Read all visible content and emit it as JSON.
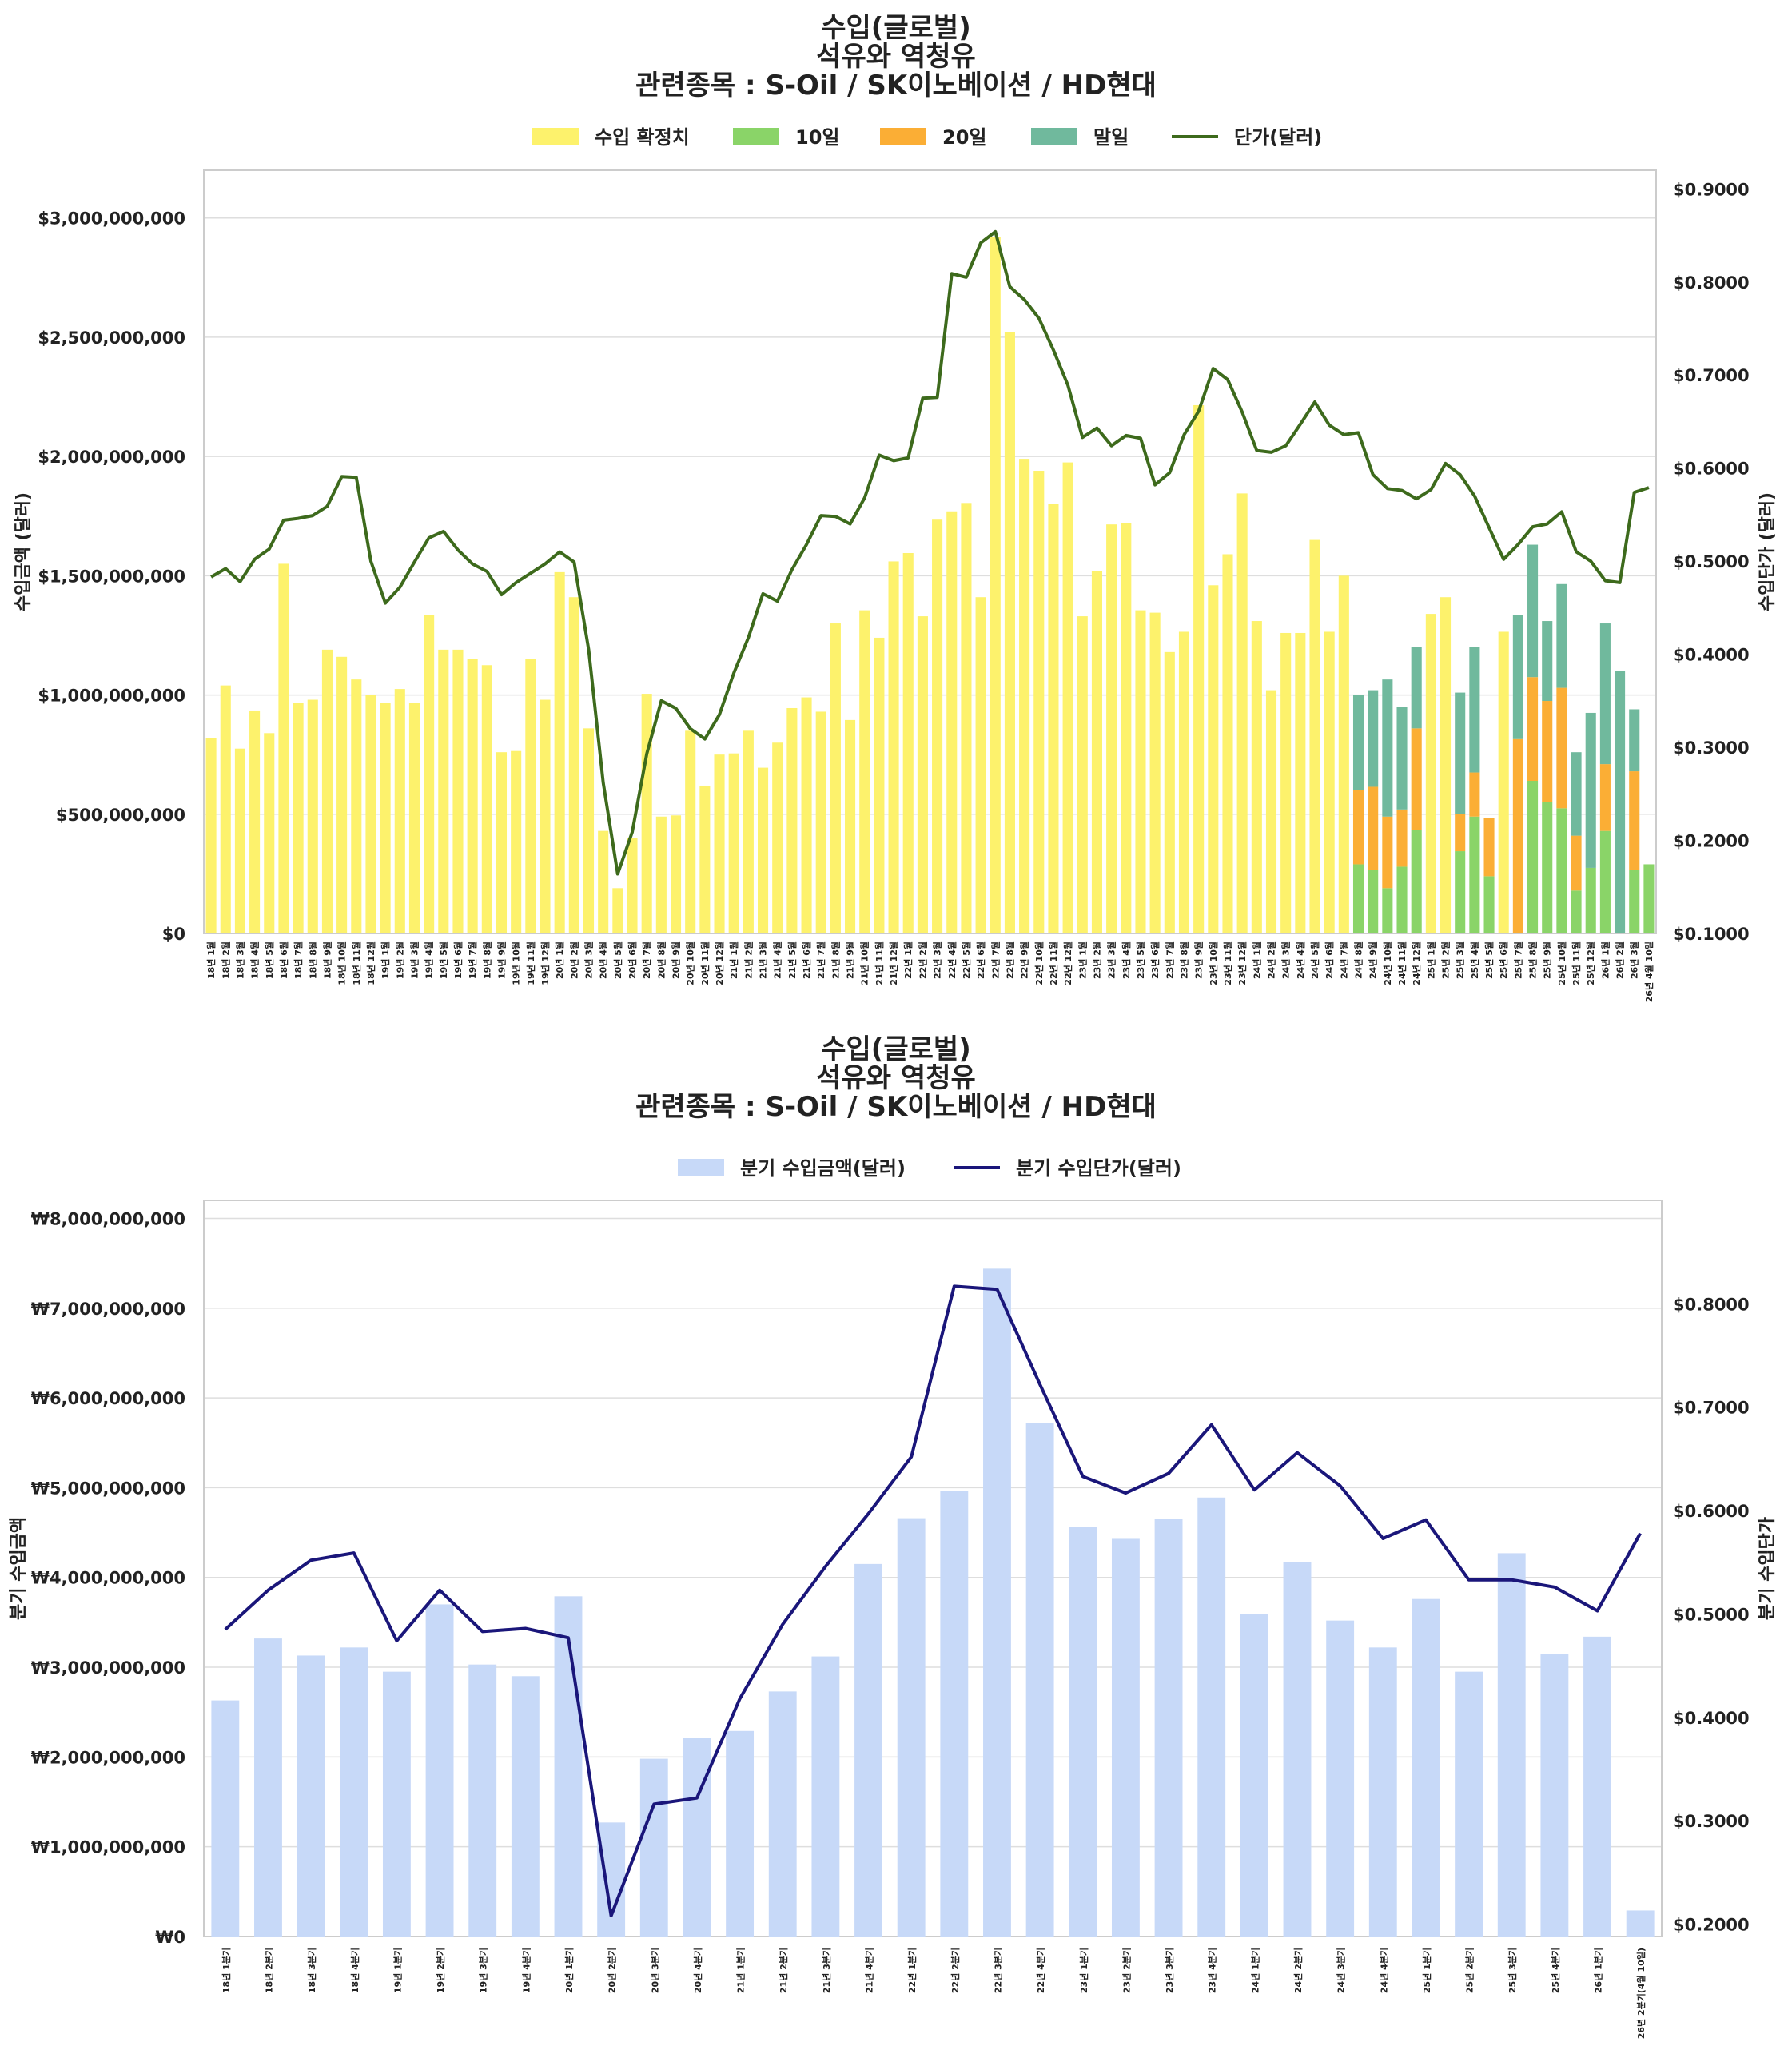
{
  "colors": {
    "confirmed": "#fdf26c",
    "d10": "#8ad468",
    "d20": "#fbae35",
    "end": "#70b99d",
    "price1": "#3d6a1c",
    "q_bar": "#c7d9f8",
    "q_line": "#1a167a",
    "grid": "#dedede",
    "frame": "#cccccc"
  },
  "chart_data": [
    {
      "type": "bar",
      "title": [
        "수입(글로벌)",
        "석유와 역청유",
        "관련종목 : S-Oil / SK이노베이션 / HD현대"
      ],
      "legend": [
        "수입 확정치",
        "10일",
        "20일",
        "말일",
        "단가(달러)"
      ],
      "ylabel": "수입금액 (달러)",
      "y2label": "수입단가 (달러)",
      "ylim": [
        0,
        3200000000
      ],
      "y2lim": [
        0.1,
        0.92
      ],
      "yticks": [
        0,
        500000000,
        1000000000,
        1500000000,
        2000000000,
        2500000000,
        3000000000
      ],
      "ytick_labels": [
        "$0",
        "$500,000,000",
        "$1,000,000,000",
        "$1,500,000,000",
        "$2,000,000,000",
        "$2,500,000,000",
        "$3,000,000,000"
      ],
      "y2ticks": [
        0.1,
        0.2,
        0.3,
        0.4,
        0.5,
        0.6,
        0.7,
        0.8,
        0.9
      ],
      "y2tick_labels": [
        "$0.1000",
        "$0.2000",
        "$0.3000",
        "$0.4000",
        "$0.5000",
        "$0.6000",
        "$0.7000",
        "$0.8000",
        "$0.9000"
      ],
      "categories": [
        "18년 1월",
        "18년 2월",
        "18년 3월",
        "18년 4월",
        "18년 5월",
        "18년 6월",
        "18년 7월",
        "18년 8월",
        "18년 9월",
        "18년 10월",
        "18년 11월",
        "18년 12월",
        "19년 1월",
        "19년 2월",
        "19년 3월",
        "19년 4월",
        "19년 5월",
        "19년 6월",
        "19년 7월",
        "19년 8월",
        "19년 9월",
        "19년 10월",
        "19년 11월",
        "19년 12월",
        "20년 1월",
        "20년 2월",
        "20년 3월",
        "20년 4월",
        "20년 5월",
        "20년 6월",
        "20년 7월",
        "20년 8월",
        "20년 9월",
        "20년 10월",
        "20년 11월",
        "20년 12월",
        "21년 1월",
        "21년 2월",
        "21년 3월",
        "21년 4월",
        "21년 5월",
        "21년 6월",
        "21년 7월",
        "21년 8월",
        "21년 9월",
        "21년 10월",
        "21년 11월",
        "21년 12월",
        "22년 1월",
        "22년 2월",
        "22년 3월",
        "22년 4월",
        "22년 5월",
        "22년 6월",
        "22년 7월",
        "22년 8월",
        "22년 9월",
        "22년 10월",
        "22년 11월",
        "22년 12월",
        "23년 1월",
        "23년 2월",
        "23년 3월",
        "23년 4월",
        "23년 5월",
        "23년 6월",
        "23년 7월",
        "23년 8월",
        "23년 9월",
        "23년 10월",
        "23년 11월",
        "23년 12월",
        "24년 1월",
        "24년 2월",
        "24년 3월",
        "24년 4월",
        "24년 5월",
        "24년 6월",
        "24년 7월",
        "24년 8월",
        "24년 9월",
        "24년 10월",
        "24년 11월",
        "24년 12월",
        "25년 1월",
        "25년 2월",
        "25년 3월",
        "25년 4월",
        "25년 5월",
        "25년 6월",
        "25년 7월",
        "25년 8월",
        "25년 9월",
        "25년 10월",
        "25년 11월",
        "25년 12월",
        "26년 1월",
        "26년 2월",
        "26년 3월",
        "26년 4월 10일"
      ],
      "series": [
        {
          "name": "수입 확정치",
          "values": [
            820000000,
            1040000000,
            775000000,
            935000000,
            840000000,
            1550000000,
            965000000,
            980000000,
            1190000000,
            1160000000,
            1065000000,
            1000000000,
            965000000,
            1025000000,
            965000000,
            1335000000,
            1190000000,
            1190000000,
            1150000000,
            1125000000,
            760000000,
            765000000,
            1150000000,
            980000000,
            1515000000,
            1410000000,
            860000000,
            430000000,
            190000000,
            400000000,
            1005000000,
            490000000,
            495000000,
            850000000,
            620000000,
            750000000,
            755000000,
            850000000,
            695000000,
            800000000,
            945000000,
            990000000,
            930000000,
            1300000000,
            895000000,
            1355000000,
            1240000000,
            1560000000,
            1595000000,
            1330000000,
            1735000000,
            1770000000,
            1805000000,
            1410000000,
            2920000000,
            2520000000,
            1990000000,
            1940000000,
            1800000000,
            1975000000,
            1330000000,
            1520000000,
            1715000000,
            1720000000,
            1355000000,
            1345000000,
            1180000000,
            1265000000,
            2215000000,
            1460000000,
            1590000000,
            1845000000,
            1310000000,
            1020000000,
            1260000000,
            1260000000,
            1650000000,
            1265000000,
            1500000000,
            0,
            0,
            0,
            0,
            0,
            1340000000,
            1410000000,
            0,
            0,
            0,
            1265000000,
            0,
            0,
            0,
            0,
            0,
            0,
            0,
            0,
            0,
            0
          ]
        },
        {
          "name": "10일",
          "values": [
            0,
            0,
            0,
            0,
            0,
            0,
            0,
            0,
            0,
            0,
            0,
            0,
            0,
            0,
            0,
            0,
            0,
            0,
            0,
            0,
            0,
            0,
            0,
            0,
            0,
            0,
            0,
            0,
            0,
            0,
            0,
            0,
            0,
            0,
            0,
            0,
            0,
            0,
            0,
            0,
            0,
            0,
            0,
            0,
            0,
            0,
            0,
            0,
            0,
            0,
            0,
            0,
            0,
            0,
            0,
            0,
            0,
            0,
            0,
            0,
            0,
            0,
            0,
            0,
            0,
            0,
            0,
            0,
            0,
            0,
            0,
            0,
            0,
            0,
            0,
            0,
            0,
            0,
            0,
            290000000,
            265000000,
            190000000,
            280000000,
            435000000,
            0,
            0,
            345000000,
            490000000,
            240000000,
            0,
            0,
            640000000,
            550000000,
            525000000,
            180000000,
            275000000,
            430000000,
            0,
            265000000,
            290000000
          ]
        },
        {
          "name": "20일",
          "values": [
            0,
            0,
            0,
            0,
            0,
            0,
            0,
            0,
            0,
            0,
            0,
            0,
            0,
            0,
            0,
            0,
            0,
            0,
            0,
            0,
            0,
            0,
            0,
            0,
            0,
            0,
            0,
            0,
            0,
            0,
            0,
            0,
            0,
            0,
            0,
            0,
            0,
            0,
            0,
            0,
            0,
            0,
            0,
            0,
            0,
            0,
            0,
            0,
            0,
            0,
            0,
            0,
            0,
            0,
            0,
            0,
            0,
            0,
            0,
            0,
            0,
            0,
            0,
            0,
            0,
            0,
            0,
            0,
            0,
            0,
            0,
            0,
            0,
            0,
            0,
            0,
            0,
            0,
            0,
            310000000,
            350000000,
            300000000,
            240000000,
            425000000,
            0,
            0,
            155000000,
            185000000,
            245000000,
            0,
            815000000,
            435000000,
            425000000,
            505000000,
            230000000,
            0,
            280000000,
            0,
            415000000,
            0
          ]
        },
        {
          "name": "말일",
          "values": [
            0,
            0,
            0,
            0,
            0,
            0,
            0,
            0,
            0,
            0,
            0,
            0,
            0,
            0,
            0,
            0,
            0,
            0,
            0,
            0,
            0,
            0,
            0,
            0,
            0,
            0,
            0,
            0,
            0,
            0,
            0,
            0,
            0,
            0,
            0,
            0,
            0,
            0,
            0,
            0,
            0,
            0,
            0,
            0,
            0,
            0,
            0,
            0,
            0,
            0,
            0,
            0,
            0,
            0,
            0,
            0,
            0,
            0,
            0,
            0,
            0,
            0,
            0,
            0,
            0,
            0,
            0,
            0,
            0,
            0,
            0,
            0,
            0,
            0,
            0,
            0,
            0,
            0,
            0,
            400000000,
            405000000,
            575000000,
            430000000,
            340000000,
            0,
            0,
            510000000,
            525000000,
            0,
            0,
            520000000,
            555000000,
            335000000,
            435000000,
            350000000,
            650000000,
            590000000,
            1100000000,
            260000000,
            0
          ]
        }
      ],
      "line": {
        "name": "단가(달러)",
        "values": [
          0.483,
          0.492,
          0.478,
          0.502,
          0.513,
          0.544,
          0.546,
          0.549,
          0.559,
          0.591,
          0.59,
          0.5,
          0.455,
          0.472,
          0.499,
          0.525,
          0.532,
          0.512,
          0.497,
          0.489,
          0.464,
          0.477,
          0.487,
          0.497,
          0.51,
          0.499,
          0.405,
          0.262,
          0.164,
          0.209,
          0.293,
          0.35,
          0.342,
          0.32,
          0.309,
          0.335,
          0.38,
          0.418,
          0.465,
          0.457,
          0.491,
          0.518,
          0.549,
          0.548,
          0.54,
          0.568,
          0.614,
          0.608,
          0.611,
          0.675,
          0.676,
          0.809,
          0.805,
          0.842,
          0.854,
          0.795,
          0.781,
          0.761,
          0.727,
          0.689,
          0.633,
          0.643,
          0.624,
          0.635,
          0.632,
          0.582,
          0.595,
          0.636,
          0.661,
          0.707,
          0.695,
          0.66,
          0.619,
          0.617,
          0.624,
          0.647,
          0.671,
          0.646,
          0.636,
          0.638,
          0.593,
          0.578,
          0.576,
          0.567,
          0.577,
          0.605,
          0.593,
          0.57,
          0.536,
          0.502,
          0.518,
          0.537,
          0.54,
          0.553,
          0.51,
          0.5,
          0.479,
          0.477,
          0.574,
          0.579
        ]
      }
    },
    {
      "type": "bar",
      "title": [
        "수입(글로벌)",
        "석유와 역청유",
        "관련종목 : S-Oil / SK이노베이션 / HD현대"
      ],
      "legend": [
        "분기 수입금액(달러)",
        "분기 수입단가(달러)"
      ],
      "ylabel": "분기 수입금액",
      "y2label": "분기 수입단가",
      "ylim": [
        0,
        8200000000
      ],
      "y2lim": [
        0.188,
        0.9
      ],
      "yticks": [
        0,
        1000000000,
        2000000000,
        3000000000,
        4000000000,
        5000000000,
        6000000000,
        7000000000,
        8000000000
      ],
      "ytick_labels": [
        "₩0",
        "₩1,000,000,000",
        "₩2,000,000,000",
        "₩3,000,000,000",
        "₩4,000,000,000",
        "₩5,000,000,000",
        "₩6,000,000,000",
        "₩7,000,000,000",
        "₩8,000,000,000"
      ],
      "y2ticks": [
        0.2,
        0.3,
        0.4,
        0.5,
        0.6,
        0.7,
        0.8
      ],
      "y2tick_labels": [
        "$0.2000",
        "$0.3000",
        "$0.4000",
        "$0.5000",
        "$0.6000",
        "$0.7000",
        "$0.8000"
      ],
      "categories": [
        "18년 1분기",
        "18년 2분기",
        "18년 3분기",
        "18년 4분기",
        "19년 1분기",
        "19년 2분기",
        "19년 3분기",
        "19년 4분기",
        "20년 1분기",
        "20년 2분기",
        "20년 3분기",
        "20년 4분기",
        "21년 1분기",
        "21년 2분기",
        "21년 3분기",
        "21년 4분기",
        "22년 1분기",
        "22년 2분기",
        "22년 3분기",
        "22년 4분기",
        "23년 1분기",
        "23년 2분기",
        "23년 3분기",
        "23년 4분기",
        "24년 1분기",
        "24년 2분기",
        "24년 3분기",
        "24년 4분기",
        "25년 1분기",
        "25년 2분기",
        "25년 3분기",
        "25년 4분기",
        "26년 1분기",
        "26년 2분기(4월 10일)"
      ],
      "series": [
        {
          "name": "분기 수입금액(달러)",
          "values": [
            2630000000,
            3320000000,
            3130000000,
            3220000000,
            2950000000,
            3700000000,
            3030000000,
            2900000000,
            3790000000,
            1270000000,
            1980000000,
            2210000000,
            2290000000,
            2730000000,
            3120000000,
            4150000000,
            4660000000,
            4960000000,
            7440000000,
            5720000000,
            4560000000,
            4430000000,
            4650000000,
            4890000000,
            3590000000,
            4170000000,
            3520000000,
            3220000000,
            3760000000,
            2950000000,
            4270000000,
            3150000000,
            3340000000,
            290000000
          ]
        }
      ],
      "line": {
        "name": "분기 수입단가(달러)",
        "values": [
          0.485,
          0.523,
          0.552,
          0.559,
          0.474,
          0.523,
          0.483,
          0.486,
          0.477,
          0.208,
          0.316,
          0.322,
          0.418,
          0.49,
          0.546,
          0.597,
          0.652,
          0.817,
          0.814,
          0.722,
          0.633,
          0.617,
          0.636,
          0.683,
          0.62,
          0.656,
          0.624,
          0.573,
          0.591,
          0.533,
          0.533,
          0.526,
          0.503,
          0.578
        ]
      }
    }
  ]
}
